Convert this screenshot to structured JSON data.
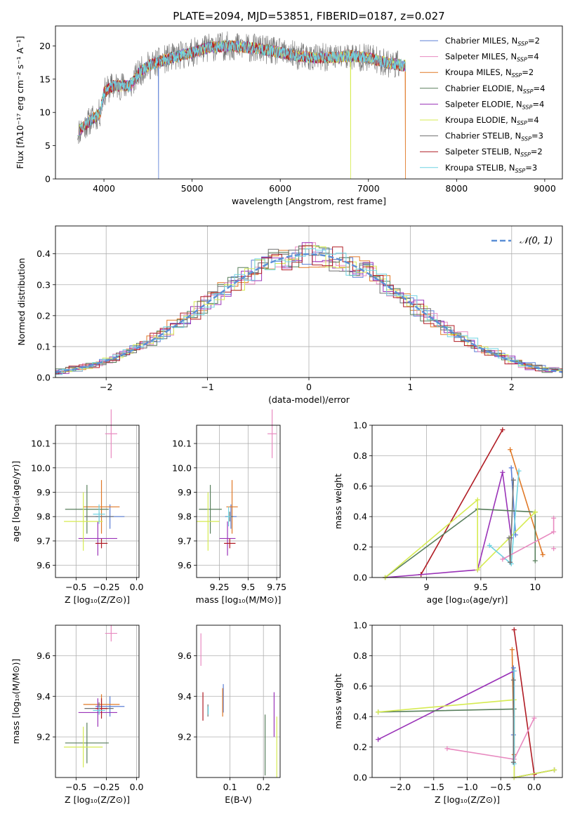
{
  "figure_title": "PLATE=2094, MJD=53851, FIBERID=0187, z=0.027",
  "models": [
    {
      "key": "cm",
      "label": "Chabrier MILES, N",
      "sub": "SSP",
      "eq": "=2",
      "color": "#5b7fd6"
    },
    {
      "key": "sm",
      "label": "Salpeter MILES, N",
      "sub": "SSP",
      "eq": "=4",
      "color": "#e88ac0"
    },
    {
      "key": "km",
      "label": "Kroupa MILES, N",
      "sub": "SSP",
      "eq": "=2",
      "color": "#e07826"
    },
    {
      "key": "ce",
      "label": "Chabrier ELODIE, N",
      "sub": "SSP",
      "eq": "=4",
      "color": "#587f5c"
    },
    {
      "key": "se",
      "label": "Salpeter ELODIE, N",
      "sub": "SSP",
      "eq": "=4",
      "color": "#9a33b8"
    },
    {
      "key": "ke",
      "label": "Kroupa ELODIE, N",
      "sub": "SSP",
      "eq": "=4",
      "color": "#d6eb52"
    },
    {
      "key": "cs",
      "label": "Chabrier STELIB, N",
      "sub": "SSP",
      "eq": "=3",
      "color": "#707070"
    },
    {
      "key": "ss",
      "label": "Salpeter STELIB, N",
      "sub": "SSP",
      "eq": "=2",
      "color": "#b01c24"
    },
    {
      "key": "ks",
      "label": "Kroupa STELIB, N",
      "sub": "SSP",
      "eq": "=3",
      "color": "#6fd3e2"
    }
  ],
  "chart_data": [
    {
      "id": "spectrum",
      "type": "line",
      "xlabel": "wavelength [Angstrom, rest frame]",
      "ylabel": "Flux [fλ10⁻¹⁷ erg cm⁻² s⁻¹ A⁻¹]",
      "xlim": [
        3450,
        9200
      ],
      "ylim": [
        0,
        23
      ],
      "xticks": [
        4000,
        5000,
        6000,
        7000,
        8000,
        9000
      ],
      "yticks": [
        0,
        5,
        10,
        15,
        20
      ],
      "grid": false,
      "legend": "upper right",
      "continuum": {
        "x": [
          3700,
          3780,
          3860,
          3920,
          3960,
          4000,
          4100,
          4200,
          4300,
          4400,
          4500,
          4700,
          5000,
          5200,
          5400,
          5600,
          5800,
          6000,
          6200,
          6400,
          6600,
          6800,
          7000,
          7200,
          7300,
          7400
        ],
        "y": [
          7,
          8,
          9,
          9.5,
          10,
          13,
          14,
          14,
          14,
          16,
          17,
          18,
          19,
          19.8,
          20,
          19.8,
          19.5,
          19,
          18.5,
          18.2,
          18.3,
          18.5,
          18.2,
          17.5,
          17.3,
          17
        ]
      },
      "dropouts": {
        "4620": "Chabrier MILES",
        "6800": "Kroupa ELODIE",
        "7420": "Kroupa MILES"
      }
    },
    {
      "id": "residual_hist",
      "type": "histogram",
      "xlabel": "(data-model)/error",
      "ylabel": "Normed distribution",
      "xlim": [
        -2.5,
        2.5
      ],
      "ylim": [
        0,
        0.49
      ],
      "xticks": [
        -2,
        -1,
        0,
        1,
        2
      ],
      "yticks": [
        0.0,
        0.1,
        0.2,
        0.3,
        0.4
      ],
      "grid": true,
      "reference_curve": "N(0,1)",
      "reference_label": "𝒩(0, 1)",
      "bin_width": 0.1
    },
    {
      "id": "age_vs_Z",
      "type": "errorbar",
      "xlabel": "Z [log₁₀(Z/Z⊙)]",
      "ylabel": "age  [log₁₀(age/yr)]",
      "xlim": [
        -0.67,
        0.02
      ],
      "ylim": [
        9.55,
        10.175
      ],
      "xticks": [
        -0.5,
        -0.25,
        0.0
      ],
      "xticklabels": [
        "−0.5",
        "−0.25",
        "0.0"
      ],
      "yticks": [
        9.6,
        9.7,
        9.8,
        9.9,
        10.0,
        10.1
      ],
      "grid": true,
      "points": [
        {
          "m": "cm",
          "x": -0.22,
          "y": 9.8,
          "xerr": 0.12,
          "yerr": 0.05
        },
        {
          "m": "sm",
          "x": -0.21,
          "y": 10.14,
          "xerr": 0.05,
          "yerr": 0.1
        },
        {
          "m": "km",
          "x": -0.29,
          "y": 9.84,
          "xerr": 0.15,
          "yerr": 0.11
        },
        {
          "m": "ce",
          "x": -0.41,
          "y": 9.83,
          "xerr": 0.18,
          "yerr": 0.1
        },
        {
          "m": "se",
          "x": -0.32,
          "y": 9.71,
          "xerr": 0.16,
          "yerr": 0.07
        },
        {
          "m": "ke",
          "x": -0.44,
          "y": 9.78,
          "xerr": 0.16,
          "yerr": 0.12
        },
        {
          "m": "cs",
          "x": -0.31,
          "y": 9.8,
          "xerr": 0.12,
          "yerr": 0.02
        },
        {
          "m": "ss",
          "x": -0.29,
          "y": 9.69,
          "xerr": 0.05,
          "yerr": 0.02
        },
        {
          "m": "ks",
          "x": -0.31,
          "y": 9.81,
          "xerr": 0.05,
          "yerr": 0.04
        }
      ]
    },
    {
      "id": "age_vs_mass",
      "type": "errorbar",
      "xlabel": "mass [log₁₀(M/M⊙)]",
      "xlim": [
        9.05,
        9.78
      ],
      "ylim": [
        9.55,
        10.175
      ],
      "xticks": [
        9.25,
        9.5,
        9.75
      ],
      "yticks": [
        9.6,
        9.7,
        9.8,
        9.9,
        10.0,
        10.1
      ],
      "grid": true,
      "points": [
        {
          "m": "cm",
          "x": 9.35,
          "y": 9.8,
          "xerr": 0.05,
          "yerr": 0.05
        },
        {
          "m": "sm",
          "x": 9.71,
          "y": 10.14,
          "xerr": 0.04,
          "yerr": 0.1
        },
        {
          "m": "km",
          "x": 9.36,
          "y": 9.84,
          "xerr": 0.05,
          "yerr": 0.11
        },
        {
          "m": "ce",
          "x": 9.17,
          "y": 9.83,
          "xerr": 0.1,
          "yerr": 0.1
        },
        {
          "m": "se",
          "x": 9.32,
          "y": 9.71,
          "xerr": 0.07,
          "yerr": 0.07
        },
        {
          "m": "ke",
          "x": 9.15,
          "y": 9.78,
          "xerr": 0.1,
          "yerr": 0.12
        },
        {
          "m": "cs",
          "x": 9.34,
          "y": 9.8,
          "xerr": 0.03,
          "yerr": 0.02
        },
        {
          "m": "ss",
          "x": 9.34,
          "y": 9.69,
          "xerr": 0.05,
          "yerr": 0.02
        },
        {
          "m": "ks",
          "x": 9.33,
          "y": 9.8,
          "xerr": 0.02,
          "yerr": 0.04
        }
      ]
    },
    {
      "id": "weight_vs_age",
      "type": "line",
      "xlabel": "age  [log₁₀(age/yr)]",
      "ylabel": "mass weight",
      "xlim": [
        8.5,
        10.25
      ],
      "ylim": [
        0,
        1.0
      ],
      "xticks": [
        9.0,
        9.5,
        10.0
      ],
      "yticks": [
        0.0,
        0.2,
        0.4,
        0.6,
        0.8,
        1.0
      ],
      "grid": true,
      "series": [
        {
          "m": "ss",
          "x": [
            8.95,
            9.7
          ],
          "y": [
            0.02,
            0.97
          ]
        },
        {
          "m": "km",
          "x": [
            9.77,
            10.07
          ],
          "y": [
            0.84,
            0.15
          ]
        },
        {
          "m": "cm",
          "x": [
            9.78,
            9.82
          ],
          "y": [
            0.72,
            0.28
          ]
        },
        {
          "m": "se",
          "x": [
            8.62,
            9.47,
            9.7,
            9.78
          ],
          "y": [
            0.0,
            0.05,
            0.69,
            0.26
          ]
        },
        {
          "m": "ce",
          "x": [
            8.62,
            9.47,
            10.0,
            10.0
          ],
          "y": [
            0.0,
            0.45,
            0.43,
            0.11
          ]
        },
        {
          "m": "ke",
          "x": [
            8.62,
            9.47,
            9.47,
            10.0
          ],
          "y": [
            0.0,
            0.51,
            0.05,
            0.43
          ]
        },
        {
          "m": "ks",
          "x": [
            9.58,
            9.78,
            9.85
          ],
          "y": [
            0.21,
            0.09,
            0.7
          ]
        },
        {
          "m": "sm",
          "x": [
            9.7,
            10.17,
            10.17
          ],
          "y": [
            0.12,
            0.3,
            0.39
          ]
        },
        {
          "m": "cs",
          "x": [
            9.76,
            9.77,
            9.8
          ],
          "y": [
            0.26,
            0.1,
            0.64
          ]
        }
      ],
      "single_points": [
        {
          "m": "sm",
          "x": 10.17,
          "y": 0.19
        }
      ]
    },
    {
      "id": "mass_vs_Z",
      "type": "errorbar",
      "xlabel": "Z [log₁₀(Z/Z⊙)]",
      "ylabel": "mass [log₁₀(M/M⊙)]",
      "xlim": [
        -0.67,
        0.02
      ],
      "ylim": [
        9.0,
        9.75
      ],
      "xticks": [
        -0.5,
        -0.25,
        0.0
      ],
      "xticklabels": [
        "−0.5",
        "−0.25",
        "0.0"
      ],
      "yticks": [
        9.2,
        9.4,
        9.6
      ],
      "grid": true,
      "points": [
        {
          "m": "cm",
          "x": -0.22,
          "y": 9.35,
          "xerr": 0.12,
          "yerr": 0.05
        },
        {
          "m": "sm",
          "x": -0.21,
          "y": 9.71,
          "xerr": 0.05,
          "yerr": 0.04
        },
        {
          "m": "km",
          "x": -0.29,
          "y": 9.36,
          "xerr": 0.15,
          "yerr": 0.05
        },
        {
          "m": "ce",
          "x": -0.41,
          "y": 9.17,
          "xerr": 0.18,
          "yerr": 0.1
        },
        {
          "m": "se",
          "x": -0.32,
          "y": 9.32,
          "xerr": 0.16,
          "yerr": 0.07
        },
        {
          "m": "ke",
          "x": -0.44,
          "y": 9.15,
          "xerr": 0.16,
          "yerr": 0.1
        },
        {
          "m": "cs",
          "x": -0.31,
          "y": 9.34,
          "xerr": 0.12,
          "yerr": 0.03
        },
        {
          "m": "ss",
          "x": -0.29,
          "y": 9.34,
          "xerr": 0.05,
          "yerr": 0.05
        },
        {
          "m": "ks",
          "x": -0.31,
          "y": 9.33,
          "xerr": 0.05,
          "yerr": 0.02
        }
      ]
    },
    {
      "id": "mass_vs_EBV",
      "type": "errorbar",
      "xlabel": "E(B-V)",
      "xlim": [
        0.0,
        0.25
      ],
      "ylim": [
        9.0,
        9.75
      ],
      "xticks": [
        0.1,
        0.2
      ],
      "yticks": [
        9.2,
        9.4,
        9.6
      ],
      "grid": true,
      "points": [
        {
          "m": "cm",
          "x": 0.08,
          "y": 9.39,
          "xerr": 0.0,
          "yerr": 0.07
        },
        {
          "m": "sm",
          "x": 0.013,
          "y": 9.63,
          "xerr": 0.0,
          "yerr": 0.08
        },
        {
          "m": "km",
          "x": 0.078,
          "y": 9.37,
          "xerr": 0.0,
          "yerr": 0.07
        },
        {
          "m": "ce",
          "x": 0.205,
          "y": 9.16,
          "xerr": 0.0,
          "yerr": 0.15
        },
        {
          "m": "se",
          "x": 0.232,
          "y": 9.31,
          "xerr": 0.0,
          "yerr": 0.11
        },
        {
          "m": "ke",
          "x": 0.24,
          "y": 9.15,
          "xerr": 0.0,
          "yerr": 0.15
        },
        {
          "m": "cs",
          "x": 0.034,
          "y": 9.33,
          "xerr": 0.0,
          "yerr": 0.03
        },
        {
          "m": "ss",
          "x": 0.019,
          "y": 9.35,
          "xerr": 0.0,
          "yerr": 0.07
        },
        {
          "m": "ks",
          "x": 0.035,
          "y": 9.33,
          "xerr": 0.0,
          "yerr": 0.02
        }
      ]
    },
    {
      "id": "weight_vs_Z",
      "type": "line",
      "xlabel": "Z [log₁₀(Z/Z⊙)]",
      "ylabel": "mass weight",
      "xlim": [
        -2.42,
        0.42
      ],
      "ylim": [
        0,
        1.0
      ],
      "xticks": [
        -2.0,
        -1.5,
        -1.0,
        -0.5,
        0.0
      ],
      "xticklabels": [
        "−2.0",
        "−1.5",
        "−1.0",
        "−0.5",
        "0.0"
      ],
      "yticks": [
        0.0,
        0.2,
        0.4,
        0.6,
        0.8,
        1.0
      ],
      "grid": true,
      "series": [
        {
          "m": "ss",
          "x": [
            -0.3,
            0.0
          ],
          "y": [
            0.97,
            0.02
          ]
        },
        {
          "m": "km",
          "x": [
            -0.33,
            -0.3
          ],
          "y": [
            0.84,
            0.15
          ]
        },
        {
          "m": "cm",
          "x": [
            -0.31,
            -0.31
          ],
          "y": [
            0.72,
            0.28
          ]
        },
        {
          "m": "se",
          "x": [
            -2.33,
            -0.3,
            -0.3,
            0.3
          ],
          "y": [
            0.25,
            0.7,
            0.0,
            0.05
          ]
        },
        {
          "m": "ce",
          "x": [
            -2.33,
            -0.3,
            -0.3,
            0.3
          ],
          "y": [
            0.43,
            0.45,
            0.0,
            0.05
          ]
        },
        {
          "m": "ke",
          "x": [
            -2.33,
            -0.3,
            -0.3,
            0.3
          ],
          "y": [
            0.43,
            0.51,
            0.0,
            0.05
          ]
        },
        {
          "m": "sm",
          "x": [
            -1.3,
            -0.3,
            0.0
          ],
          "y": [
            0.19,
            0.12,
            0.39
          ]
        },
        {
          "m": "ks",
          "x": [
            -0.3,
            -0.3
          ],
          "y": [
            0.7,
            0.09
          ]
        },
        {
          "m": "cs",
          "x": [
            -0.31,
            -0.31
          ],
          "y": [
            0.64,
            0.1
          ]
        }
      ]
    }
  ]
}
